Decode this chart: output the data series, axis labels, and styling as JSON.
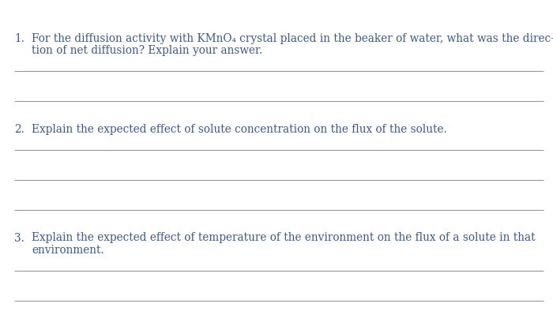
{
  "background_color": "#ffffff",
  "text_color": "#3a5a8a",
  "line_color": "#999999",
  "questions": [
    {
      "number": "1.",
      "lines": [
        "For the diffusion activity with KMnO₄ crystal placed in the beaker of water, what was the direc-",
        "tion of net diffusion? Explain your answer."
      ],
      "answer_lines": 2
    },
    {
      "number": "2.",
      "lines": [
        "Explain the expected effect of solute concentration on the flux of the solute."
      ],
      "answer_lines": 3
    },
    {
      "number": "3.",
      "lines": [
        "Explain the expected effect of temperature of the environment on the flux of a solute in that",
        "environment."
      ],
      "answer_lines": 3
    }
  ],
  "font_size": 9.8,
  "figsize": [
    7.0,
    4.14
  ],
  "dpi": 100
}
